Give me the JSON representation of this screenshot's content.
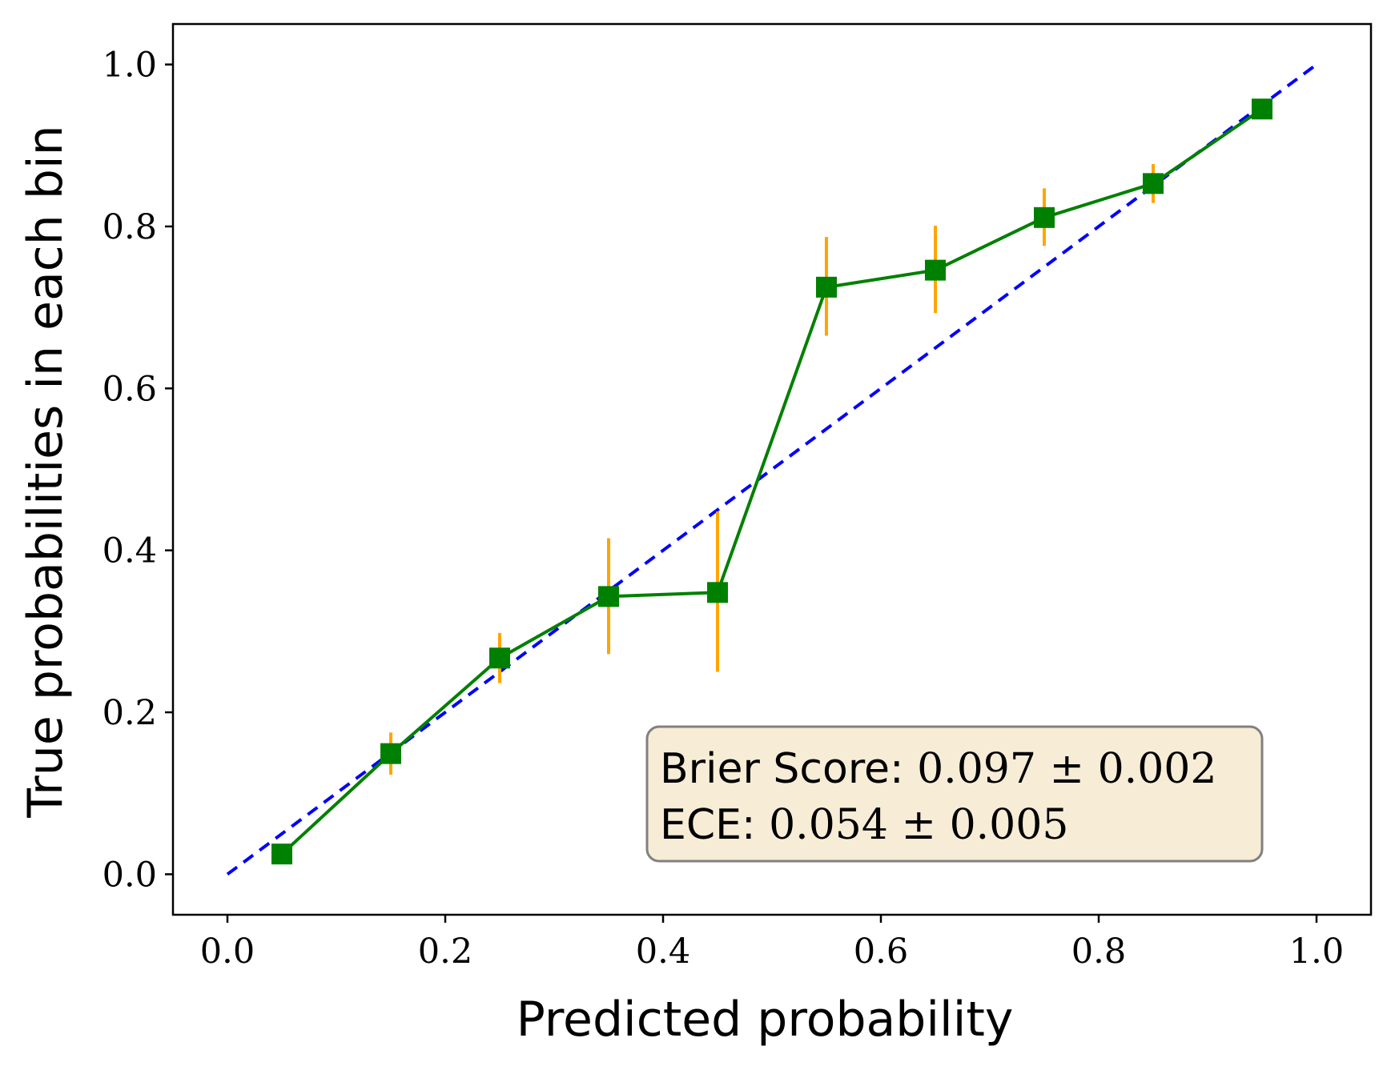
{
  "chart_data": {
    "type": "line",
    "xlabel": "Predicted probability",
    "ylabel": "True probabilities in each bin",
    "xlim": [
      -0.05,
      1.05
    ],
    "ylim": [
      -0.05,
      1.05
    ],
    "grid": false,
    "x_ticks": [
      "0.0",
      "0.2",
      "0.4",
      "0.6",
      "0.8",
      "1.0"
    ],
    "y_ticks": [
      "0.0",
      "0.2",
      "0.4",
      "0.6",
      "0.8",
      "1.0"
    ],
    "reference_line": {
      "style": "dashed",
      "color": "#0000ff",
      "x": [
        0.0,
        1.0
      ],
      "y": [
        0.0,
        1.0
      ]
    },
    "series": [
      {
        "color": "#008000",
        "error_color": "#ffa500",
        "marker": "square",
        "x": [
          0.05,
          0.15,
          0.25,
          0.35,
          0.45,
          0.55,
          0.65,
          0.75,
          0.85,
          0.95
        ],
        "y": [
          0.025,
          0.149,
          0.267,
          0.343,
          0.348,
          0.725,
          0.746,
          0.811,
          0.853,
          0.945
        ],
        "err_low": [
          0.025,
          0.123,
          0.236,
          0.272,
          0.25,
          0.665,
          0.693,
          0.776,
          0.829,
          0.94
        ],
        "err_high": [
          0.025,
          0.175,
          0.298,
          0.415,
          0.448,
          0.787,
          0.801,
          0.847,
          0.877,
          0.95
        ]
      }
    ],
    "annotation": {
      "lines": [
        {
          "label": "Brier Score: ",
          "value": "0.097 ± 0.002"
        },
        {
          "label": "ECE: ",
          "value": "0.054 ± 0.005"
        }
      ],
      "background": "#f7ecd6",
      "border": "#808080"
    }
  }
}
